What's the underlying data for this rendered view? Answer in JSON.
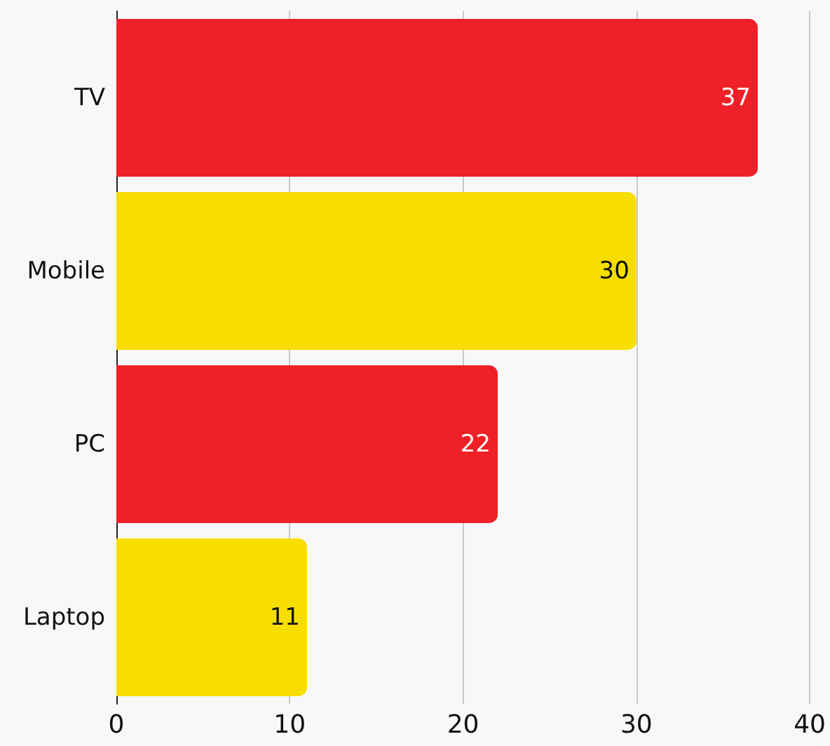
{
  "chart_data": {
    "type": "bar",
    "orientation": "horizontal",
    "categories": [
      "TV",
      "Mobile",
      "PC",
      "Laptop"
    ],
    "values": [
      37,
      30,
      22,
      11
    ],
    "colors": [
      "#ef2027",
      "#f8dd00",
      "#ef2027",
      "#f8dd00"
    ],
    "xlim": [
      0,
      40
    ],
    "xticks": [
      0,
      10,
      20,
      30,
      40
    ],
    "grid": "x",
    "data_labels": true
  }
}
